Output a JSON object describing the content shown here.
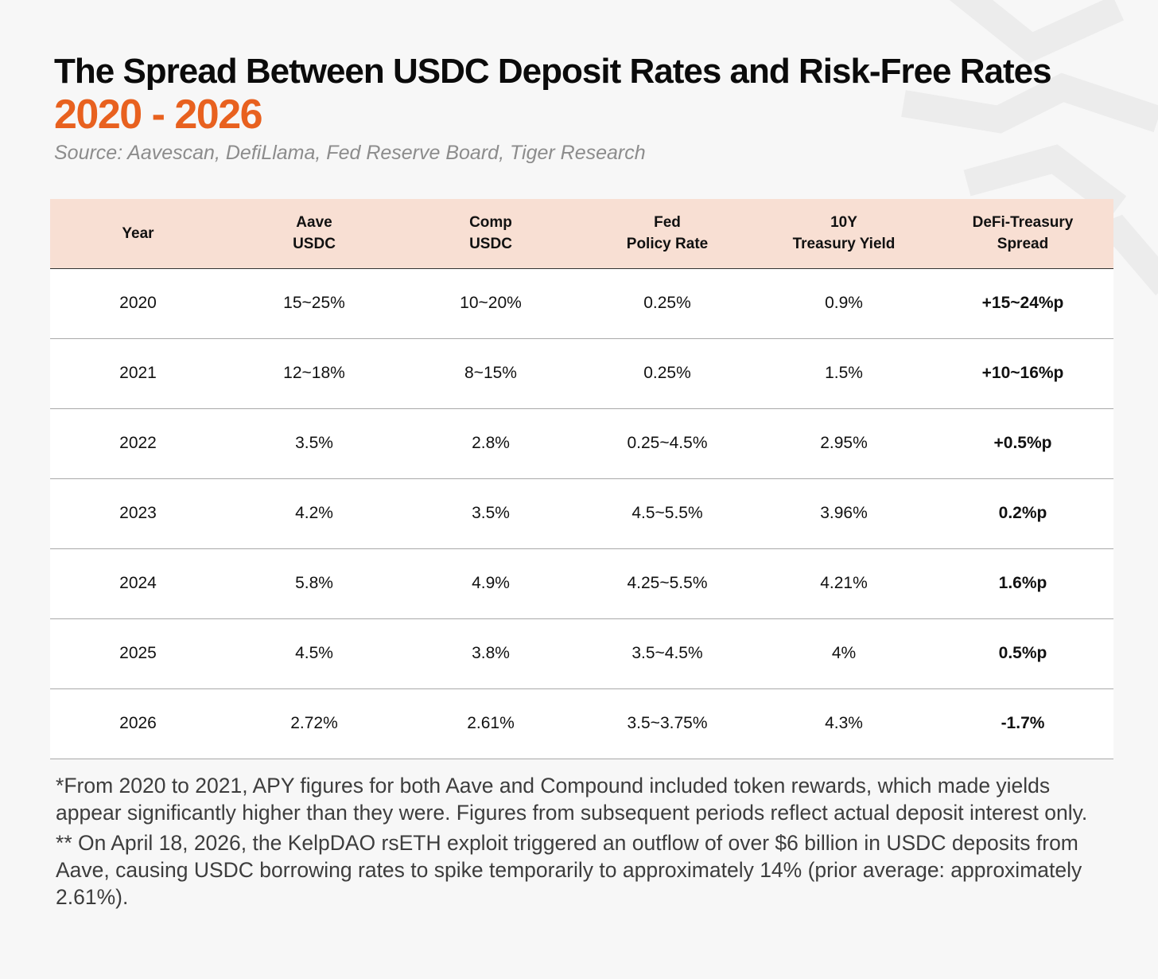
{
  "title": "The Spread Between USDC Deposit Rates and Risk-Free Rates",
  "subtitle": "2020 - 2026",
  "source": "Source: Aavescan, DefiLlama, Fed Reserve Board, Tiger Research",
  "colors": {
    "accent": "#e8611f",
    "header_bg": "#f8dfd3",
    "background": "#f7f7f7"
  },
  "chart_data": {
    "type": "table",
    "title": "The Spread Between USDC Deposit Rates and Risk-Free Rates",
    "subtitle": "2020 - 2026",
    "columns": [
      [
        "Year"
      ],
      [
        "Aave",
        "USDC"
      ],
      [
        "Comp",
        "USDC"
      ],
      [
        "Fed",
        "Policy Rate"
      ],
      [
        "10Y",
        "Treasury Yield"
      ],
      [
        "DeFi-Treasury",
        "Spread"
      ]
    ],
    "rows": [
      [
        "2020",
        "15~25%",
        "10~20%",
        "0.25%",
        "0.9%",
        "+15~24%p"
      ],
      [
        "2021",
        "12~18%",
        "8~15%",
        "0.25%",
        "1.5%",
        "+10~16%p"
      ],
      [
        "2022",
        "3.5%",
        "2.8%",
        "0.25~4.5%",
        "2.95%",
        "+0.5%p"
      ],
      [
        "2023",
        "4.2%",
        "3.5%",
        "4.5~5.5%",
        "3.96%",
        "0.2%p"
      ],
      [
        "2024",
        "5.8%",
        "4.9%",
        "4.25~5.5%",
        "4.21%",
        "1.6%p"
      ],
      [
        "2025",
        "4.5%",
        "3.8%",
        "3.5~4.5%",
        "4%",
        "0.5%p"
      ],
      [
        "2026",
        "2.72%",
        "2.61%",
        "3.5~3.75%",
        "4.3%",
        "-1.7%"
      ]
    ]
  },
  "notes": [
    "*From 2020 to 2021, APY figures for both Aave and Compound included token rewards, which made yields appear significantly higher than they were. Figures from subsequent periods reflect actual deposit interest only.",
    "** On April 18, 2026, the KelpDAO rsETH exploit triggered an outflow of over $6 billion in USDC deposits from Aave, causing USDC borrowing rates to spike temporarily to approximately 14% (prior average: approximately 2.61%)."
  ]
}
